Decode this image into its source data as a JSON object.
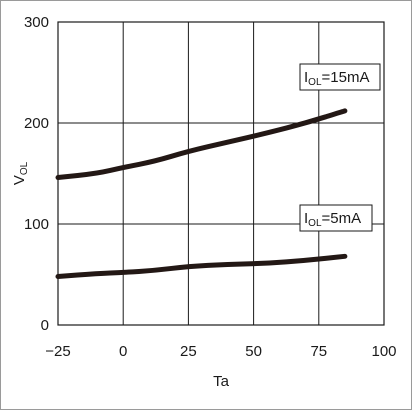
{
  "chart_data": {
    "type": "line",
    "xlabel": "Ta",
    "ylabel": {
      "main": "V",
      "sub": "OL"
    },
    "xlim": [
      -25,
      100
    ],
    "ylim": [
      0,
      300
    ],
    "xticks": [
      -25,
      0,
      25,
      50,
      75,
      100
    ],
    "yticks": [
      0,
      100,
      200,
      300
    ],
    "grid": true,
    "series": [
      {
        "name": "I_OL=15mA",
        "label": {
          "main": "I",
          "sub": "OL",
          "rest": "=15mA"
        },
        "x": [
          -25,
          -10,
          0,
          12,
          25,
          40,
          55,
          70,
          85
        ],
        "values": [
          146,
          150,
          156,
          162,
          172,
          181,
          190,
          200,
          212
        ]
      },
      {
        "name": "I_OL=5mA",
        "label": {
          "main": "I",
          "sub": "OL",
          "rest": "=5mA"
        },
        "x": [
          -25,
          -10,
          0,
          12,
          25,
          40,
          55,
          70,
          85
        ],
        "values": [
          48,
          51,
          52,
          54,
          58,
          60,
          61,
          64,
          68
        ]
      }
    ],
    "colors": {
      "line": "#231815",
      "grid": "#1a1a1a"
    }
  }
}
